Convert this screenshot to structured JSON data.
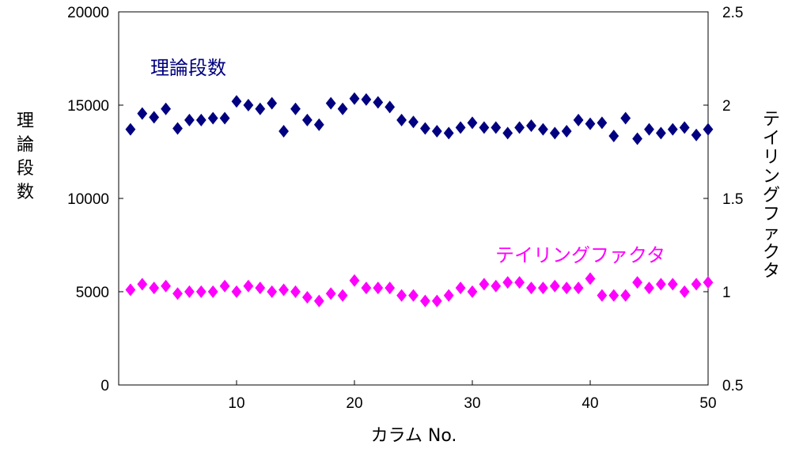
{
  "chart_data": {
    "type": "scatter",
    "xlabel": "カラム No.",
    "ylabel_left_chars": [
      "理",
      "論",
      "段",
      "数"
    ],
    "ylabel_right_chars": [
      "テ",
      "イ",
      "リ",
      "ン",
      "グ",
      "フ",
      "ァ",
      "ク",
      "タ"
    ],
    "x_ticks": [
      "10",
      "20",
      "30",
      "40",
      "50"
    ],
    "y_left_ticks": [
      "0",
      "5000",
      "10000",
      "15000",
      "20000"
    ],
    "y_right_ticks": [
      "0.5",
      "1",
      "1.5",
      "2",
      "2.5"
    ],
    "xlim": [
      0,
      50
    ],
    "ylim_left": [
      0,
      20000
    ],
    "ylim_right": [
      0.5,
      2.5
    ],
    "x_tick_values": [
      10,
      20,
      30,
      40,
      50
    ],
    "y_left_tick_values": [
      0,
      5000,
      10000,
      15000,
      20000
    ],
    "y_right_tick_values": [
      0.5,
      1,
      1.5,
      2,
      2.5
    ],
    "grid": false,
    "series": [
      {
        "name": "理論段数",
        "axis": "left",
        "color": "#000080",
        "marker": "diamond",
        "x": [
          1,
          2,
          3,
          4,
          5,
          6,
          7,
          8,
          9,
          10,
          11,
          12,
          13,
          14,
          15,
          16,
          17,
          18,
          19,
          20,
          21,
          22,
          23,
          24,
          25,
          26,
          27,
          28,
          29,
          30,
          31,
          32,
          33,
          34,
          35,
          36,
          37,
          38,
          39,
          40,
          41,
          42,
          43,
          44,
          45,
          46,
          47,
          48,
          49,
          50
        ],
        "y": [
          13700,
          14550,
          14350,
          14800,
          13750,
          14200,
          14200,
          14300,
          14300,
          15200,
          15000,
          14800,
          15100,
          13600,
          14800,
          14200,
          13950,
          15100,
          14800,
          15350,
          15300,
          15150,
          14900,
          14200,
          14100,
          13750,
          13600,
          13500,
          13800,
          14050,
          13800,
          13800,
          13500,
          13800,
          13900,
          13700,
          13500,
          13600,
          14200,
          14000,
          14050,
          13350,
          14300,
          13200,
          13700,
          13500,
          13700,
          13800,
          13400,
          13700
        ]
      },
      {
        "name": "テイリングファクタ",
        "axis": "right",
        "color": "#ff00ff",
        "marker": "diamond",
        "x": [
          1,
          2,
          3,
          4,
          5,
          6,
          7,
          8,
          9,
          10,
          11,
          12,
          13,
          14,
          15,
          16,
          17,
          18,
          19,
          20,
          21,
          22,
          23,
          24,
          25,
          26,
          27,
          28,
          29,
          30,
          31,
          32,
          33,
          34,
          35,
          36,
          37,
          38,
          39,
          40,
          41,
          42,
          43,
          44,
          45,
          46,
          47,
          48,
          49,
          50
        ],
        "y": [
          1.01,
          1.04,
          1.02,
          1.03,
          0.99,
          1.0,
          1.0,
          1.0,
          1.03,
          1.0,
          1.03,
          1.02,
          1.0,
          1.01,
          1.0,
          0.97,
          0.95,
          0.99,
          0.98,
          1.06,
          1.02,
          1.02,
          1.02,
          0.98,
          0.98,
          0.95,
          0.95,
          0.98,
          1.02,
          1.0,
          1.04,
          1.03,
          1.05,
          1.05,
          1.02,
          1.02,
          1.03,
          1.02,
          1.02,
          1.07,
          0.98,
          0.98,
          0.98,
          1.05,
          1.02,
          1.04,
          1.04,
          1.0,
          1.04,
          1.05
        ]
      }
    ]
  }
}
